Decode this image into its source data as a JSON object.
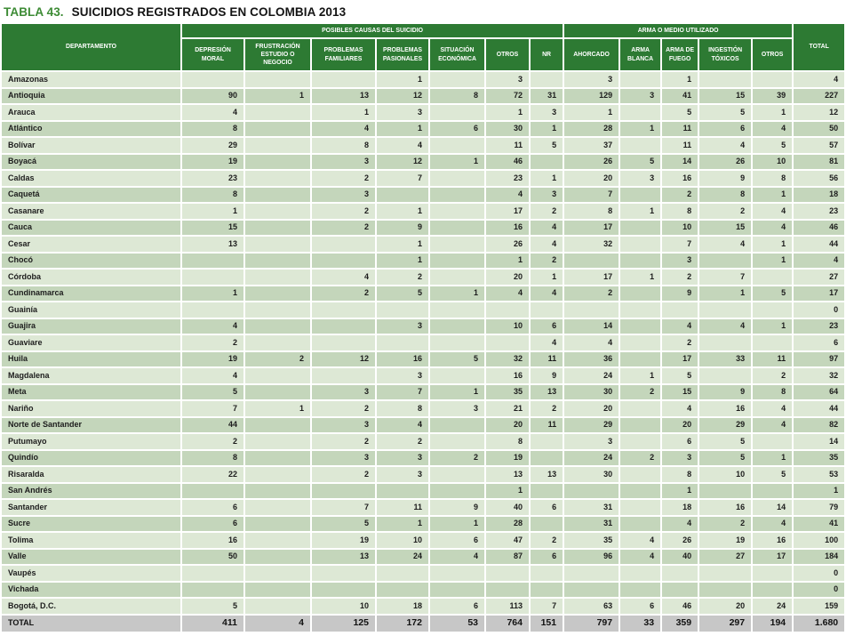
{
  "title": {
    "label": "TABLA 43.",
    "text": "SUICIDIOS REGISTRADOS EN COLOMBIA 2013"
  },
  "colors": {
    "header_green": "#2d7a33",
    "title_green": "#3d8b35",
    "row_light": "#dde8d5",
    "row_dark": "#c4d6bb",
    "total_row_gray": "#c7c7c7"
  },
  "table": {
    "department_header": "DEPARTAMENTO",
    "total_header": "TOTAL",
    "groups": [
      {
        "label": "POSIBLES CAUSAS DEL SUICIDIO",
        "span": 7
      },
      {
        "label": "ARMA O MEDIO UTILIZADO",
        "span": 5
      }
    ],
    "columns": [
      "DEPRESIÓN MORAL",
      "FRUSTRACIÓN ESTUDIO O NEGOCIO",
      "PROBLEMAS FAMILIARES",
      "PROBLEMAS PASIONALES",
      "SITUACIÓN ECONÓMICA",
      "OTROS",
      "NR",
      "AHORCADO",
      "ARMA BLANCA",
      "ARMA DE FUEGO",
      "INGESTIÓN TÓXICOS",
      "OTROS"
    ],
    "rows": [
      {
        "department": "Amazonas",
        "values": [
          "",
          "",
          "",
          "1",
          "",
          "3",
          "",
          "3",
          "",
          "1",
          "",
          ""
        ],
        "total": "4"
      },
      {
        "department": "Antioquia",
        "values": [
          "90",
          "1",
          "13",
          "12",
          "8",
          "72",
          "31",
          "129",
          "3",
          "41",
          "15",
          "39"
        ],
        "total": "227"
      },
      {
        "department": "Arauca",
        "values": [
          "4",
          "",
          "1",
          "3",
          "",
          "1",
          "3",
          "1",
          "",
          "5",
          "5",
          "1"
        ],
        "total": "12"
      },
      {
        "department": "Atlántico",
        "values": [
          "8",
          "",
          "4",
          "1",
          "6",
          "30",
          "1",
          "28",
          "1",
          "11",
          "6",
          "4"
        ],
        "total": "50"
      },
      {
        "department": "Bolívar",
        "values": [
          "29",
          "",
          "8",
          "4",
          "",
          "11",
          "5",
          "37",
          "",
          "11",
          "4",
          "5"
        ],
        "total": "57"
      },
      {
        "department": "Boyacá",
        "values": [
          "19",
          "",
          "3",
          "12",
          "1",
          "46",
          "",
          "26",
          "5",
          "14",
          "26",
          "10"
        ],
        "total": "81"
      },
      {
        "department": "Caldas",
        "values": [
          "23",
          "",
          "2",
          "7",
          "",
          "23",
          "1",
          "20",
          "3",
          "16",
          "9",
          "8"
        ],
        "total": "56"
      },
      {
        "department": "Caquetá",
        "values": [
          "8",
          "",
          "3",
          "",
          "",
          "4",
          "3",
          "7",
          "",
          "2",
          "8",
          "1"
        ],
        "total": "18"
      },
      {
        "department": "Casanare",
        "values": [
          "1",
          "",
          "2",
          "1",
          "",
          "17",
          "2",
          "8",
          "1",
          "8",
          "2",
          "4"
        ],
        "total": "23"
      },
      {
        "department": "Cauca",
        "values": [
          "15",
          "",
          "2",
          "9",
          "",
          "16",
          "4",
          "17",
          "",
          "10",
          "15",
          "4"
        ],
        "total": "46"
      },
      {
        "department": "Cesar",
        "values": [
          "13",
          "",
          "",
          "1",
          "",
          "26",
          "4",
          "32",
          "",
          "7",
          "4",
          "1"
        ],
        "total": "44"
      },
      {
        "department": "Chocó",
        "values": [
          "",
          "",
          "",
          "1",
          "",
          "1",
          "2",
          "",
          "",
          "3",
          "",
          "1"
        ],
        "total": "4"
      },
      {
        "department": "Córdoba",
        "values": [
          "",
          "",
          "4",
          "2",
          "",
          "20",
          "1",
          "17",
          "1",
          "2",
          "7",
          ""
        ],
        "total": "27"
      },
      {
        "department": "Cundinamarca",
        "values": [
          "1",
          "",
          "2",
          "5",
          "1",
          "4",
          "4",
          "2",
          "",
          "9",
          "1",
          "5"
        ],
        "total": "17"
      },
      {
        "department": "Guainía",
        "values": [
          "",
          "",
          "",
          "",
          "",
          "",
          "",
          "",
          "",
          "",
          "",
          ""
        ],
        "total": "0"
      },
      {
        "department": "Guajira",
        "values": [
          "4",
          "",
          "",
          "3",
          "",
          "10",
          "6",
          "14",
          "",
          "4",
          "4",
          "1"
        ],
        "total": "23"
      },
      {
        "department": "Guaviare",
        "values": [
          "2",
          "",
          "",
          "",
          "",
          "",
          "4",
          "4",
          "",
          "2",
          "",
          ""
        ],
        "total": "6"
      },
      {
        "department": "Huila",
        "values": [
          "19",
          "2",
          "12",
          "16",
          "5",
          "32",
          "11",
          "36",
          "",
          "17",
          "33",
          "11"
        ],
        "total": "97"
      },
      {
        "department": "Magdalena",
        "values": [
          "4",
          "",
          "",
          "3",
          "",
          "16",
          "9",
          "24",
          "1",
          "5",
          "",
          "2"
        ],
        "total": "32"
      },
      {
        "department": "Meta",
        "values": [
          "5",
          "",
          "3",
          "7",
          "1",
          "35",
          "13",
          "30",
          "2",
          "15",
          "9",
          "8"
        ],
        "total": "64"
      },
      {
        "department": "Nariño",
        "values": [
          "7",
          "1",
          "2",
          "8",
          "3",
          "21",
          "2",
          "20",
          "",
          "4",
          "16",
          "4"
        ],
        "total": "44"
      },
      {
        "department": "Norte de Santander",
        "values": [
          "44",
          "",
          "3",
          "4",
          "",
          "20",
          "11",
          "29",
          "",
          "20",
          "29",
          "4"
        ],
        "total": "82"
      },
      {
        "department": "Putumayo",
        "values": [
          "2",
          "",
          "2",
          "2",
          "",
          "8",
          "",
          "3",
          "",
          "6",
          "5",
          ""
        ],
        "total": "14"
      },
      {
        "department": "Quindío",
        "values": [
          "8",
          "",
          "3",
          "3",
          "2",
          "19",
          "",
          "24",
          "2",
          "3",
          "5",
          "1"
        ],
        "total": "35"
      },
      {
        "department": "Risaralda",
        "values": [
          "22",
          "",
          "2",
          "3",
          "",
          "13",
          "13",
          "30",
          "",
          "8",
          "10",
          "5"
        ],
        "total": "53"
      },
      {
        "department": "San Andrés",
        "values": [
          "",
          "",
          "",
          "",
          "",
          "1",
          "",
          "",
          "",
          "1",
          "",
          ""
        ],
        "total": "1"
      },
      {
        "department": "Santander",
        "values": [
          "6",
          "",
          "7",
          "11",
          "9",
          "40",
          "6",
          "31",
          "",
          "18",
          "16",
          "14"
        ],
        "total": "79"
      },
      {
        "department": "Sucre",
        "values": [
          "6",
          "",
          "5",
          "1",
          "1",
          "28",
          "",
          "31",
          "",
          "4",
          "2",
          "4"
        ],
        "total": "41"
      },
      {
        "department": "Tolima",
        "values": [
          "16",
          "",
          "19",
          "10",
          "6",
          "47",
          "2",
          "35",
          "4",
          "26",
          "19",
          "16"
        ],
        "total": "100"
      },
      {
        "department": "Valle",
        "values": [
          "50",
          "",
          "13",
          "24",
          "4",
          "87",
          "6",
          "96",
          "4",
          "40",
          "27",
          "17"
        ],
        "total": "184"
      },
      {
        "department": "Vaupés",
        "values": [
          "",
          "",
          "",
          "",
          "",
          "",
          "",
          "",
          "",
          "",
          "",
          ""
        ],
        "total": "0"
      },
      {
        "department": "Vichada",
        "values": [
          "",
          "",
          "",
          "",
          "",
          "",
          "",
          "",
          "",
          "",
          "",
          ""
        ],
        "total": "0"
      },
      {
        "department": "Bogotá, D.C.",
        "values": [
          "5",
          "",
          "10",
          "18",
          "6",
          "113",
          "7",
          "63",
          "6",
          "46",
          "20",
          "24"
        ],
        "total": "159"
      }
    ],
    "total_row": {
      "department": "TOTAL",
      "values": [
        "411",
        "4",
        "125",
        "172",
        "53",
        "764",
        "151",
        "797",
        "33",
        "359",
        "297",
        "194"
      ],
      "total": "1.680"
    }
  }
}
